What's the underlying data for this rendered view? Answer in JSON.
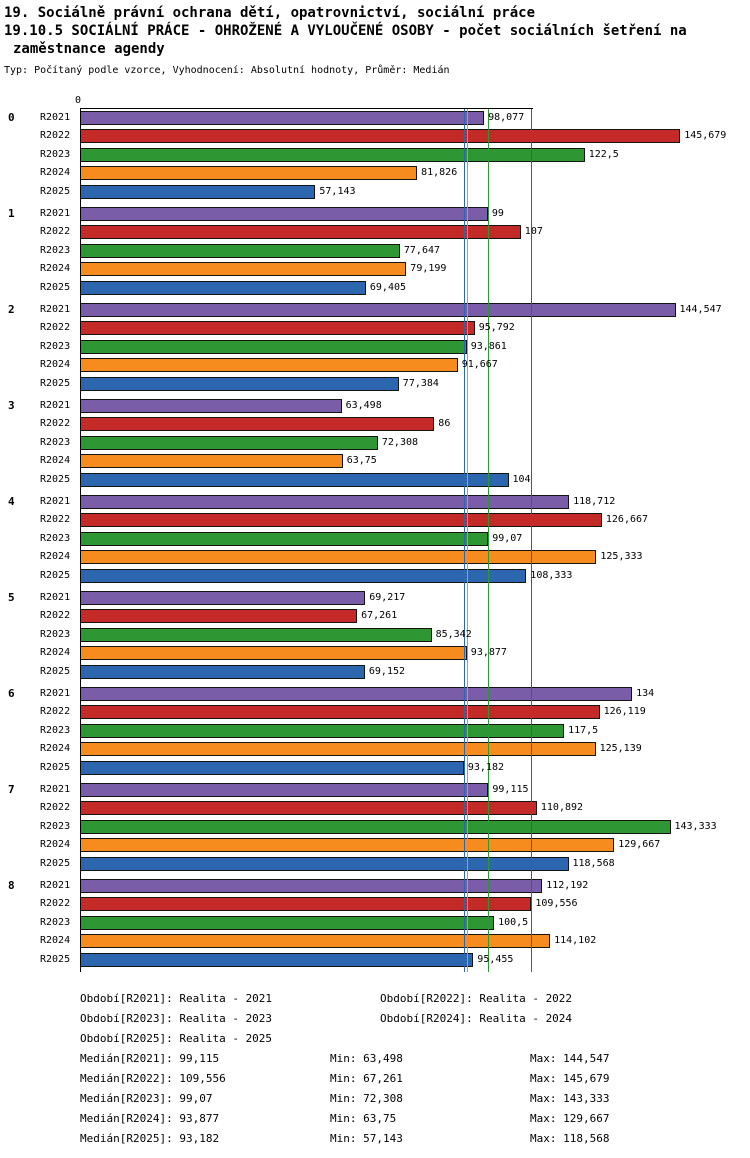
{
  "header": {
    "title_line1": "19. Sociálně právní ochrana dětí, opatrovnictví, sociální práce",
    "title_line2": "19.10.5 SOCIÁLNÍ PRÁCE - OHROŽENÉ A VYLOUČENÉ OSOBY - počet sociálních šetření na",
    "title_line3": "zaměstnance agendy",
    "subtitle": "Typ: Počítaný podle vzorce, Vyhodnocení: Absolutní hodnoty, Průměr: Medián"
  },
  "chart_data": {
    "type": "bar",
    "orientation": "horizontal",
    "value_axis": {
      "origin_label": "0",
      "min": 0,
      "max_visible": 150
    },
    "categories": [
      "0",
      "1",
      "2",
      "3",
      "4",
      "5",
      "6",
      "7",
      "8"
    ],
    "series_names": [
      "R2021",
      "R2022",
      "R2023",
      "R2024",
      "R2025"
    ],
    "series_colors": {
      "R2021": "#7a5da8",
      "R2022": "#c42b28",
      "R2023": "#2e9632",
      "R2024": "#f68b1e",
      "R2025": "#2c66ae"
    },
    "bar_border_color": "#141414",
    "medians": {
      "R2021": 99.115,
      "R2022": 109.556,
      "R2023": 99.07,
      "R2024": 93.877,
      "R2025": 93.182
    },
    "groups": [
      {
        "category": "0",
        "values": [
          {
            "series": "R2021",
            "value": 98.077,
            "label": "98,077"
          },
          {
            "series": "R2022",
            "value": 145.679,
            "label": "145,679"
          },
          {
            "series": "R2023",
            "value": 122.5,
            "label": "122,5"
          },
          {
            "series": "R2024",
            "value": 81.826,
            "label": "81,826"
          },
          {
            "series": "R2025",
            "value": 57.143,
            "label": "57,143"
          }
        ]
      },
      {
        "category": "1",
        "values": [
          {
            "series": "R2021",
            "value": 99,
            "label": "99"
          },
          {
            "series": "R2022",
            "value": 107,
            "label": "107"
          },
          {
            "series": "R2023",
            "value": 77.647,
            "label": "77,647"
          },
          {
            "series": "R2024",
            "value": 79.199,
            "label": "79,199"
          },
          {
            "series": "R2025",
            "value": 69.405,
            "label": "69,405"
          }
        ]
      },
      {
        "category": "2",
        "values": [
          {
            "series": "R2021",
            "value": 144.547,
            "label": "144,547"
          },
          {
            "series": "R2022",
            "value": 95.792,
            "label": "95,792"
          },
          {
            "series": "R2023",
            "value": 93.861,
            "label": "93,861"
          },
          {
            "series": "R2024",
            "value": 91.667,
            "label": "91,667"
          },
          {
            "series": "R2025",
            "value": 77.384,
            "label": "77,384"
          }
        ]
      },
      {
        "category": "3",
        "values": [
          {
            "series": "R2021",
            "value": 63.498,
            "label": "63,498"
          },
          {
            "series": "R2022",
            "value": 86,
            "label": "86"
          },
          {
            "series": "R2023",
            "value": 72.308,
            "label": "72,308"
          },
          {
            "series": "R2024",
            "value": 63.75,
            "label": "63,75"
          },
          {
            "series": "R2025",
            "value": 104,
            "label": "104"
          }
        ]
      },
      {
        "category": "4",
        "values": [
          {
            "series": "R2021",
            "value": 118.712,
            "label": "118,712"
          },
          {
            "series": "R2022",
            "value": 126.667,
            "label": "126,667"
          },
          {
            "series": "R2023",
            "value": 99.07,
            "label": "99,07"
          },
          {
            "series": "R2024",
            "value": 125.333,
            "label": "125,333"
          },
          {
            "series": "R2025",
            "value": 108.333,
            "label": "108,333"
          }
        ]
      },
      {
        "category": "5",
        "values": [
          {
            "series": "R2021",
            "value": 69.217,
            "label": "69,217"
          },
          {
            "series": "R2022",
            "value": 67.261,
            "label": "67,261"
          },
          {
            "series": "R2023",
            "value": 85.342,
            "label": "85,342"
          },
          {
            "series": "R2024",
            "value": 93.877,
            "label": "93,877"
          },
          {
            "series": "R2025",
            "value": 69.152,
            "label": "69,152"
          }
        ]
      },
      {
        "category": "6",
        "values": [
          {
            "series": "R2021",
            "value": 134,
            "label": "134"
          },
          {
            "series": "R2022",
            "value": 126.119,
            "label": "126,119"
          },
          {
            "series": "R2023",
            "value": 117.5,
            "label": "117,5"
          },
          {
            "series": "R2024",
            "value": 125.139,
            "label": "125,139"
          },
          {
            "series": "R2025",
            "value": 93.182,
            "label": "93,182"
          }
        ]
      },
      {
        "category": "7",
        "values": [
          {
            "series": "R2021",
            "value": 99.115,
            "label": "99,115"
          },
          {
            "series": "R2022",
            "value": 110.892,
            "label": "110,892"
          },
          {
            "series": "R2023",
            "value": 143.333,
            "label": "143,333"
          },
          {
            "series": "R2024",
            "value": 129.667,
            "label": "129,667"
          },
          {
            "series": "R2025",
            "value": 118.568,
            "label": "118,568"
          }
        ]
      },
      {
        "category": "8",
        "values": [
          {
            "series": "R2021",
            "value": 112.192,
            "label": "112,192"
          },
          {
            "series": "R2022",
            "value": 109.556,
            "label": "109,556"
          },
          {
            "series": "R2023",
            "value": 100.5,
            "label": "100,5"
          },
          {
            "series": "R2024",
            "value": 114.102,
            "label": "114,102"
          },
          {
            "series": "R2025",
            "value": 95.455,
            "label": "95,455"
          }
        ]
      }
    ]
  },
  "legend": {
    "items": [
      "Období[R2021]: Realita - 2021",
      "Období[R2022]: Realita - 2022",
      "Období[R2023]: Realita - 2023",
      "Období[R2024]: Realita - 2024",
      "Období[R2025]: Realita - 2025"
    ]
  },
  "stats": {
    "rows": [
      {
        "median": "Medián[R2021]: 99,115",
        "min": "Min: 63,498",
        "max": "Max: 144,547"
      },
      {
        "median": "Medián[R2022]: 109,556",
        "min": "Min: 67,261",
        "max": "Max: 145,679"
      },
      {
        "median": "Medián[R2023]: 99,07",
        "min": "Min: 72,308",
        "max": "Max: 143,333"
      },
      {
        "median": "Medián[R2024]: 93,877",
        "min": "Min: 63,75",
        "max": "Max: 129,667"
      },
      {
        "median": "Medián[R2025]: 93,182",
        "min": "Min: 57,143",
        "max": "Max: 118,568"
      }
    ]
  }
}
